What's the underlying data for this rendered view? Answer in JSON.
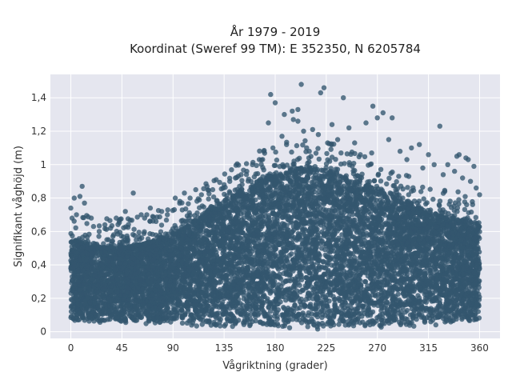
{
  "chart_data": {
    "type": "scatter",
    "title_lines": [
      "År 1979 - 2019",
      "Koordinat (Sweref 99 TM): E 352350, N 6205784"
    ],
    "xlabel": "Vågriktning (grader)",
    "ylabel": "Signifikant våghöjd (m)",
    "xlim": [
      -18,
      378
    ],
    "ylim": [
      -0.04,
      1.54
    ],
    "xticks": [
      0,
      45,
      90,
      135,
      180,
      225,
      270,
      315,
      360
    ],
    "xtick_labels": [
      "0",
      "45",
      "90",
      "135",
      "180",
      "225",
      "270",
      "315",
      "360"
    ],
    "yticks": [
      0,
      0.2,
      0.4,
      0.6,
      0.8,
      1.0,
      1.2,
      1.4
    ],
    "ytick_labels": [
      "0",
      "0,2",
      "0,4",
      "0,6",
      "0,8",
      "1",
      "1,2",
      "1,4"
    ],
    "grid": true,
    "marker_color": "#33566e",
    "plot_bg": "#e5e6ef",
    "envelope": {
      "description": "dense cloud of points; upper edge of the dense band and lower edge, per direction",
      "x": [
        0,
        15,
        30,
        45,
        60,
        75,
        90,
        105,
        120,
        135,
        150,
        165,
        180,
        195,
        210,
        225,
        240,
        255,
        270,
        285,
        300,
        315,
        330,
        345,
        358
      ],
      "upper": [
        0.55,
        0.52,
        0.5,
        0.5,
        0.52,
        0.54,
        0.58,
        0.64,
        0.72,
        0.78,
        0.84,
        0.9,
        0.95,
        0.97,
        0.98,
        0.96,
        0.92,
        0.88,
        0.84,
        0.8,
        0.76,
        0.72,
        0.68,
        0.66,
        0.65
      ],
      "lower": [
        0.06,
        0.06,
        0.06,
        0.06,
        0.06,
        0.05,
        0.05,
        0.04,
        0.04,
        0.03,
        0.02,
        0.02,
        0.02,
        0.02,
        0.02,
        0.02,
        0.02,
        0.03,
        0.03,
        0.04,
        0.04,
        0.05,
        0.05,
        0.06,
        0.06
      ]
    },
    "outliers": [
      [
        203,
        1.48
      ],
      [
        220,
        1.43
      ],
      [
        223,
        1.46
      ],
      [
        176,
        1.42
      ],
      [
        240,
        1.4
      ],
      [
        180,
        1.37
      ],
      [
        200,
        1.33
      ],
      [
        195,
        1.32
      ],
      [
        266,
        1.35
      ],
      [
        275,
        1.31
      ],
      [
        270,
        1.28
      ],
      [
        283,
        1.28
      ],
      [
        325,
        1.23
      ],
      [
        213,
        1.21
      ],
      [
        200,
        1.26
      ],
      [
        230,
        1.24
      ],
      [
        245,
        1.22
      ],
      [
        260,
        1.25
      ],
      [
        174,
        1.25
      ],
      [
        186,
        1.17
      ],
      [
        218,
        1.18
      ],
      [
        235,
        1.15
      ],
      [
        250,
        1.13
      ],
      [
        280,
        1.15
      ],
      [
        300,
        1.1
      ],
      [
        307,
        1.12
      ],
      [
        315,
        1.06
      ],
      [
        340,
        1.05
      ],
      [
        350,
        1.03
      ],
      [
        355,
        0.99
      ],
      [
        332,
        1.0
      ],
      [
        166,
        1.03
      ],
      [
        160,
        1.0
      ],
      [
        150,
        0.94
      ],
      [
        145,
        0.92
      ],
      [
        140,
        0.9
      ],
      [
        128,
        0.91
      ],
      [
        120,
        0.87
      ],
      [
        110,
        0.85
      ],
      [
        100,
        0.83
      ],
      [
        92,
        0.8
      ],
      [
        80,
        0.72
      ],
      [
        70,
        0.74
      ],
      [
        55,
        0.83
      ],
      [
        48,
        0.72
      ],
      [
        40,
        0.68
      ],
      [
        30,
        0.64
      ],
      [
        20,
        0.63
      ],
      [
        10,
        0.87
      ],
      [
        8,
        0.81
      ],
      [
        3,
        0.8
      ],
      [
        0,
        0.74
      ],
      [
        5,
        0.7
      ],
      [
        12,
        0.77
      ],
      [
        18,
        0.68
      ],
      [
        25,
        0.6
      ],
      [
        35,
        0.62
      ],
      [
        62,
        0.7
      ],
      [
        65,
        0.68
      ],
      [
        75,
        0.66
      ],
      [
        85,
        0.7
      ],
      [
        96,
        0.78
      ],
      [
        105,
        0.8
      ],
      [
        115,
        0.82
      ],
      [
        125,
        0.85
      ],
      [
        135,
        0.88
      ],
      [
        155,
        0.96
      ],
      [
        170,
        1.08
      ],
      [
        178,
        1.1
      ],
      [
        190,
        1.12
      ],
      [
        205,
        1.2
      ],
      [
        210,
        1.08
      ],
      [
        228,
        1.02
      ],
      [
        238,
        1.07
      ],
      [
        255,
        1.06
      ],
      [
        265,
        1.07
      ],
      [
        290,
        1.08
      ],
      [
        296,
        1.03
      ],
      [
        310,
        0.98
      ],
      [
        320,
        1.0
      ],
      [
        328,
        0.94
      ],
      [
        338,
        0.96
      ],
      [
        345,
        0.92
      ],
      [
        352,
        0.9
      ],
      [
        357,
        0.86
      ],
      [
        360,
        0.82
      ],
      [
        342,
        1.06
      ],
      [
        348,
        1.04
      ],
      [
        188,
        1.3
      ],
      [
        196,
        1.27
      ]
    ]
  }
}
